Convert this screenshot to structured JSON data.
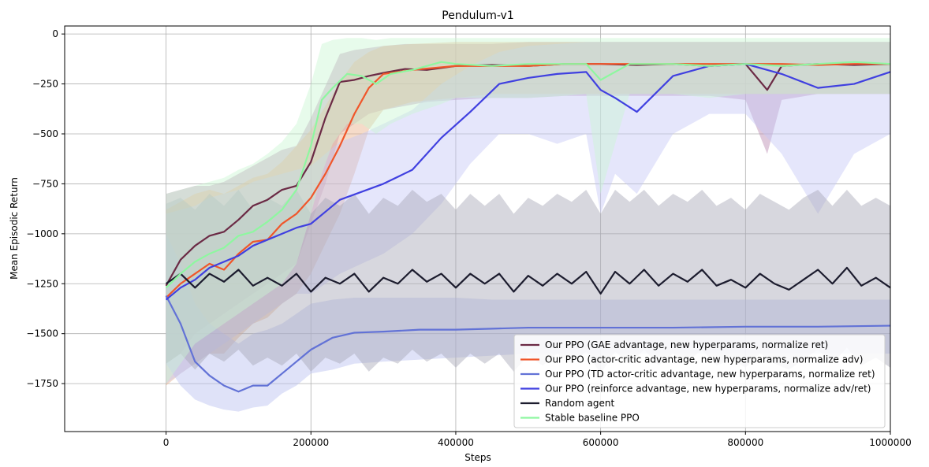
{
  "chart_data": {
    "type": "line",
    "title": "Pendulum-v1",
    "xlabel": "Steps",
    "ylabel": "Mean Episodic Return",
    "xlim": [
      -140000,
      1000000
    ],
    "ylim": [
      -1990,
      40
    ],
    "x_ticks": [
      0,
      200000,
      400000,
      600000,
      800000,
      1000000
    ],
    "y_ticks": [
      0,
      -250,
      -500,
      -750,
      -1000,
      -1250,
      -1500,
      -1750
    ],
    "x_tick_labels": [
      "0",
      "200000",
      "400000",
      "600000",
      "800000",
      "1000000"
    ],
    "y_tick_labels": [
      "0",
      "−250",
      "−500",
      "−750",
      "−1000",
      "−1250",
      "−1500",
      "−1750"
    ],
    "grid": true,
    "legend_position": "lower-right",
    "series": [
      {
        "name": "Our PPO (GAE advantage, new hyperparams, normalize ret)",
        "color": "#6b2a45",
        "x": [
          0,
          20000,
          40000,
          60000,
          80000,
          100000,
          120000,
          140000,
          160000,
          180000,
          200000,
          220000,
          240000,
          260000,
          280000,
          300000,
          330000,
          360000,
          400000,
          450000,
          500000,
          550000,
          600000,
          650000,
          700000,
          750000,
          800000,
          830000,
          850000,
          900000,
          950000,
          1000000
        ],
        "y": [
          -1260,
          -1130,
          -1060,
          -1010,
          -990,
          -930,
          -860,
          -830,
          -780,
          -760,
          -640,
          -420,
          -240,
          -230,
          -210,
          -195,
          -175,
          -180,
          -160,
          -155,
          -160,
          -150,
          -150,
          -155,
          -150,
          -160,
          -150,
          -280,
          -160,
          -150,
          -155,
          -150
        ],
        "band_upper": [
          -800,
          -780,
          -760,
          -760,
          -740,
          -700,
          -660,
          -620,
          -580,
          -560,
          -420,
          -260,
          -100,
          -80,
          -70,
          -60,
          -50,
          -50,
          -50,
          -50,
          -40,
          -40,
          -40,
          -40,
          -40,
          -40,
          -40,
          -40,
          -40,
          -40,
          -40,
          -40
        ],
        "band_lower": [
          -1650,
          -1600,
          -1500,
          -1450,
          -1400,
          -1350,
          -1300,
          -1250,
          -1200,
          -1150,
          -950,
          -750,
          -500,
          -450,
          -400,
          -380,
          -360,
          -340,
          -330,
          -320,
          -320,
          -310,
          -310,
          -310,
          -310,
          -310,
          -330,
          -600,
          -330,
          -300,
          -300,
          -300
        ],
        "band_color": "#b987b0"
      },
      {
        "name": "Our PPO (actor-critic advantage, new hyperparams, normalize adv)",
        "color": "#f0562a",
        "x": [
          0,
          20000,
          40000,
          60000,
          80000,
          100000,
          120000,
          140000,
          160000,
          180000,
          200000,
          220000,
          240000,
          260000,
          280000,
          300000,
          340000,
          400000,
          450000,
          500000,
          550000,
          600000,
          650000,
          700000,
          750000,
          800000,
          850000,
          900000,
          950000,
          1000000
        ],
        "y": [
          -1320,
          -1250,
          -1200,
          -1150,
          -1180,
          -1100,
          -1040,
          -1030,
          -950,
          -900,
          -820,
          -700,
          -560,
          -400,
          -270,
          -200,
          -180,
          -160,
          -160,
          -160,
          -150,
          -150,
          -150,
          -150,
          -150,
          -150,
          -150,
          -155,
          -150,
          -150
        ],
        "band_upper": [
          -880,
          -840,
          -800,
          -780,
          -800,
          -760,
          -720,
          -700,
          -640,
          -560,
          -480,
          -360,
          -240,
          -140,
          -90,
          -60,
          -50,
          -40,
          -40,
          -40,
          -40,
          -40,
          -40,
          -40,
          -40,
          -40,
          -40,
          -40,
          -40,
          -40
        ],
        "band_lower": [
          -1760,
          -1700,
          -1650,
          -1600,
          -1600,
          -1520,
          -1450,
          -1420,
          -1350,
          -1300,
          -1200,
          -1050,
          -900,
          -700,
          -480,
          -380,
          -340,
          -320,
          -300,
          -300,
          -300,
          -300,
          -300,
          -300,
          -300,
          -300,
          -300,
          -300,
          -300,
          -300
        ],
        "band_color": "#e8b088"
      },
      {
        "name": "Our PPO (TD actor-critic advantage, new hyperparams, normalize ret)",
        "color": "#6272d6",
        "x": [
          0,
          20000,
          40000,
          60000,
          80000,
          100000,
          120000,
          140000,
          160000,
          180000,
          200000,
          230000,
          260000,
          300000,
          350000,
          400000,
          450000,
          500000,
          600000,
          700000,
          800000,
          900000,
          1000000
        ],
        "y": [
          -1310,
          -1450,
          -1640,
          -1710,
          -1760,
          -1790,
          -1760,
          -1760,
          -1700,
          -1640,
          -1580,
          -1520,
          -1495,
          -1490,
          -1480,
          -1480,
          -1475,
          -1470,
          -1470,
          -1470,
          -1465,
          -1465,
          -1460
        ],
        "band_upper": [
          -1000,
          -1150,
          -1350,
          -1450,
          -1500,
          -1550,
          -1500,
          -1480,
          -1450,
          -1400,
          -1350,
          -1330,
          -1320,
          -1320,
          -1320,
          -1320,
          -1330,
          -1330,
          -1330,
          -1330,
          -1330,
          -1330,
          -1330
        ],
        "band_lower": [
          -1650,
          -1760,
          -1830,
          -1860,
          -1880,
          -1890,
          -1870,
          -1860,
          -1800,
          -1760,
          -1700,
          -1680,
          -1650,
          -1640,
          -1630,
          -1620,
          -1610,
          -1600,
          -1600,
          -1600,
          -1600,
          -1600,
          -1600
        ],
        "band_color": "#b7bfef"
      },
      {
        "name": "Our PPO (reinforce advantage, new hyperparams, normalize adv/ret)",
        "color": "#4040e0",
        "x": [
          0,
          20000,
          40000,
          60000,
          80000,
          100000,
          120000,
          140000,
          160000,
          180000,
          200000,
          220000,
          240000,
          270000,
          300000,
          340000,
          380000,
          420000,
          460000,
          500000,
          540000,
          580000,
          600000,
          620000,
          650000,
          700000,
          750000,
          800000,
          850000,
          900000,
          950000,
          1000000
        ],
        "y": [
          -1330,
          -1270,
          -1230,
          -1170,
          -1140,
          -1110,
          -1060,
          -1030,
          -1000,
          -970,
          -950,
          -890,
          -830,
          -790,
          -750,
          -680,
          -520,
          -390,
          -250,
          -220,
          -200,
          -190,
          -280,
          -320,
          -390,
          -210,
          -160,
          -150,
          -200,
          -270,
          -250,
          -190
        ],
        "band_upper": [
          -900,
          -880,
          -860,
          -820,
          -800,
          -780,
          -740,
          -720,
          -700,
          -680,
          -660,
          -600,
          -540,
          -500,
          -450,
          -380,
          -250,
          -160,
          -90,
          -60,
          -50,
          -40,
          -40,
          -40,
          -40,
          -40,
          -40,
          -40,
          -40,
          -40,
          -40,
          -40
        ],
        "band_lower": [
          -1750,
          -1700,
          -1650,
          -1600,
          -1550,
          -1500,
          -1450,
          -1400,
          -1350,
          -1300,
          -1300,
          -1250,
          -1200,
          -1150,
          -1100,
          -1000,
          -850,
          -650,
          -500,
          -500,
          -550,
          -500,
          -900,
          -700,
          -800,
          -500,
          -400,
          -400,
          -600,
          -900,
          -600,
          -500
        ],
        "band_color": "#c5c8f6"
      },
      {
        "name": "Random agent",
        "color": "#1c1c2e",
        "x": [
          0,
          20000,
          40000,
          60000,
          80000,
          100000,
          120000,
          140000,
          160000,
          180000,
          200000,
          220000,
          240000,
          260000,
          280000,
          300000,
          320000,
          340000,
          360000,
          380000,
          400000,
          420000,
          440000,
          460000,
          480000,
          500000,
          520000,
          540000,
          560000,
          580000,
          600000,
          620000,
          640000,
          660000,
          680000,
          700000,
          720000,
          740000,
          760000,
          780000,
          800000,
          820000,
          840000,
          860000,
          880000,
          900000,
          920000,
          940000,
          960000,
          980000,
          1000000
        ],
        "y": [
          -1250,
          -1200,
          -1270,
          -1200,
          -1240,
          -1180,
          -1260,
          -1220,
          -1260,
          -1200,
          -1290,
          -1220,
          -1250,
          -1200,
          -1290,
          -1220,
          -1250,
          -1180,
          -1240,
          -1200,
          -1270,
          -1200,
          -1250,
          -1200,
          -1290,
          -1210,
          -1260,
          -1200,
          -1250,
          -1190,
          -1300,
          -1190,
          -1250,
          -1180,
          -1260,
          -1200,
          -1240,
          -1180,
          -1260,
          -1230,
          -1270,
          -1200,
          -1250,
          -1280,
          -1230,
          -1180,
          -1250,
          -1170,
          -1260,
          -1220,
          -1270
        ],
        "band_upper": [
          -850,
          -820,
          -880,
          -800,
          -860,
          -780,
          -880,
          -820,
          -860,
          -780,
          -900,
          -820,
          -860,
          -800,
          -900,
          -820,
          -860,
          -780,
          -840,
          -800,
          -880,
          -800,
          -860,
          -800,
          -900,
          -820,
          -860,
          -800,
          -840,
          -780,
          -900,
          -780,
          -840,
          -780,
          -860,
          -800,
          -840,
          -780,
          -860,
          -820,
          -880,
          -800,
          -840,
          -880,
          -820,
          -780,
          -860,
          -780,
          -860,
          -820,
          -860
        ],
        "band_lower": [
          -1650,
          -1600,
          -1680,
          -1600,
          -1640,
          -1580,
          -1660,
          -1620,
          -1660,
          -1600,
          -1690,
          -1620,
          -1650,
          -1600,
          -1690,
          -1620,
          -1650,
          -1580,
          -1640,
          -1600,
          -1670,
          -1600,
          -1650,
          -1600,
          -1690,
          -1610,
          -1660,
          -1600,
          -1650,
          -1590,
          -1700,
          -1590,
          -1650,
          -1580,
          -1660,
          -1600,
          -1640,
          -1580,
          -1660,
          -1630,
          -1670,
          -1600,
          -1650,
          -1680,
          -1630,
          -1580,
          -1650,
          -1570,
          -1660,
          -1620,
          -1670
        ],
        "band_color": "#a6a6b6"
      },
      {
        "name": "Stable baseline PPO",
        "color": "#8ef7a0",
        "x": [
          0,
          20000,
          40000,
          60000,
          80000,
          100000,
          120000,
          140000,
          160000,
          180000,
          200000,
          215000,
          230000,
          250000,
          270000,
          290000,
          310000,
          340000,
          380000,
          400000,
          450000,
          500000,
          550000,
          580000,
          600000,
          640000,
          700000,
          750000,
          800000,
          850000,
          900000,
          950000,
          1000000
        ],
        "y": [
          -1270,
          -1200,
          -1140,
          -1100,
          -1070,
          -1010,
          -990,
          -940,
          -880,
          -780,
          -560,
          -330,
          -270,
          -200,
          -210,
          -250,
          -200,
          -180,
          -140,
          -150,
          -160,
          -150,
          -150,
          -150,
          -230,
          -150,
          -150,
          -160,
          -150,
          -160,
          -150,
          -140,
          -150
        ],
        "band_upper": [
          -800,
          -780,
          -760,
          -740,
          -720,
          -680,
          -650,
          -600,
          -540,
          -450,
          -250,
          -50,
          -30,
          -20,
          -20,
          -30,
          -20,
          -20,
          -20,
          -20,
          -20,
          -20,
          -20,
          -20,
          -20,
          -20,
          -20,
          -20,
          -20,
          -20,
          -20,
          -20,
          -20
        ],
        "band_lower": [
          -1750,
          -1650,
          -1550,
          -1500,
          -1450,
          -1400,
          -1350,
          -1300,
          -1250,
          -1150,
          -900,
          -700,
          -550,
          -450,
          -450,
          -500,
          -450,
          -400,
          -350,
          -320,
          -320,
          -320,
          -310,
          -300,
          -800,
          -300,
          -300,
          -320,
          -300,
          -300,
          -300,
          -300,
          -300
        ],
        "band_color": "#c9f7d3"
      }
    ]
  }
}
